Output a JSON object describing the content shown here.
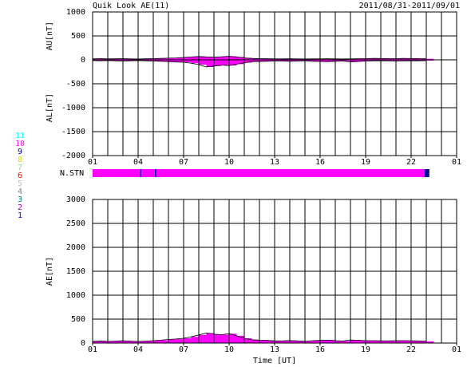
{
  "chart_data": [
    {
      "type": "area",
      "title": "Quik Look AE(11)",
      "subtitle": "2011/08/31-2011/09/01",
      "xlim": [
        0,
        24
      ],
      "x_grid_step": 1,
      "xticks": [
        {
          "value": 0,
          "label": "01"
        },
        {
          "value": 3,
          "label": "04"
        },
        {
          "value": 6,
          "label": "07"
        },
        {
          "value": 9,
          "label": "10"
        },
        {
          "value": 12,
          "label": "13"
        },
        {
          "value": 15,
          "label": "16"
        },
        {
          "value": 18,
          "label": "19"
        },
        {
          "value": 21,
          "label": "22"
        },
        {
          "value": 24,
          "label": "01"
        }
      ],
      "ylim": [
        -2000,
        1000
      ],
      "yticks": [
        1000,
        500,
        0,
        -500,
        -1000,
        -1500,
        -2000
      ],
      "grid": true,
      "x": [
        0,
        0.5,
        1,
        1.5,
        2,
        2.5,
        3,
        3.5,
        4,
        4.5,
        5,
        5.5,
        6,
        6.5,
        7,
        7.5,
        8,
        8.5,
        9,
        9.5,
        10,
        10.5,
        11,
        11.5,
        12,
        12.5,
        13,
        13.5,
        14,
        14.5,
        15,
        15.5,
        16,
        16.5,
        17,
        17.5,
        18,
        18.5,
        19,
        19.5,
        20,
        20.5,
        21,
        21.5,
        22
      ],
      "series": [
        {
          "name": "AU[nT]",
          "color": "#ff00ff",
          "values": [
            20,
            25,
            20,
            22,
            25,
            20,
            18,
            22,
            25,
            30,
            35,
            40,
            50,
            60,
            70,
            60,
            55,
            65,
            75,
            60,
            40,
            30,
            25,
            25,
            20,
            20,
            22,
            20,
            18,
            20,
            20,
            22,
            20,
            18,
            20,
            22,
            25,
            30,
            28,
            25,
            25,
            30,
            28,
            25,
            22
          ]
        },
        {
          "name": "AL[nT]",
          "color": "#ff00ff",
          "values": [
            -15,
            -20,
            -15,
            -20,
            -25,
            -20,
            -15,
            -20,
            -25,
            -30,
            -40,
            -45,
            -50,
            -70,
            -100,
            -150,
            -130,
            -110,
            -120,
            -90,
            -60,
            -40,
            -35,
            -30,
            -25,
            -25,
            -30,
            -25,
            -20,
            -30,
            -35,
            -40,
            -30,
            -25,
            -45,
            -35,
            -25,
            -20,
            -20,
            -20,
            -25,
            -20,
            -20,
            -20,
            -15
          ]
        }
      ]
    },
    {
      "type": "strip",
      "name": "N.STN",
      "xlim": [
        0,
        24
      ],
      "edges": [
        0,
        3.1,
        3.2,
        4.1,
        4.2,
        21.9,
        22.2
      ],
      "values": [
        10,
        9,
        10,
        9,
        10,
        9
      ],
      "levels": [
        1,
        2,
        3,
        4,
        5,
        6,
        7,
        8,
        9,
        10,
        11
      ],
      "level_colors": [
        "#0000ff",
        "#a000c0",
        "#008080",
        "#808080",
        "#c0c0c0",
        "#ff0000",
        "#80e080",
        "#e0e000",
        "#0000a0",
        "#ff00ff",
        "#00ffff"
      ]
    },
    {
      "type": "area",
      "xlabel": "Time [UT]",
      "xlim": [
        0,
        24
      ],
      "x_grid_step": 1,
      "xticks": [
        {
          "value": 0,
          "label": "01"
        },
        {
          "value": 3,
          "label": "04"
        },
        {
          "value": 6,
          "label": "07"
        },
        {
          "value": 9,
          "label": "10"
        },
        {
          "value": 12,
          "label": "13"
        },
        {
          "value": 15,
          "label": "16"
        },
        {
          "value": 18,
          "label": "19"
        },
        {
          "value": 21,
          "label": "22"
        },
        {
          "value": 24,
          "label": "01"
        }
      ],
      "ylim": [
        0,
        3000
      ],
      "yticks": [
        3000,
        2500,
        2000,
        1500,
        1000,
        500,
        0
      ],
      "grid": true,
      "x": [
        0,
        0.5,
        1,
        1.5,
        2,
        2.5,
        3,
        3.5,
        4,
        4.5,
        5,
        5.5,
        6,
        6.5,
        7,
        7.5,
        8,
        8.5,
        9,
        9.5,
        10,
        10.5,
        11,
        11.5,
        12,
        12.5,
        13,
        13.5,
        14,
        14.5,
        15,
        15.5,
        16,
        16.5,
        17,
        17.5,
        18,
        18.5,
        19,
        19.5,
        20,
        20.5,
        21,
        21.5,
        22
      ],
      "series": [
        {
          "name": "AE[nT]",
          "color": "#ff00ff",
          "values": [
            35,
            45,
            35,
            42,
            50,
            40,
            33,
            42,
            50,
            60,
            75,
            85,
            100,
            130,
            170,
            210,
            185,
            175,
            195,
            150,
            100,
            70,
            60,
            55,
            45,
            45,
            52,
            45,
            38,
            50,
            55,
            62,
            50,
            43,
            65,
            57,
            50,
            50,
            48,
            45,
            50,
            50,
            48,
            45,
            37
          ]
        }
      ]
    }
  ]
}
